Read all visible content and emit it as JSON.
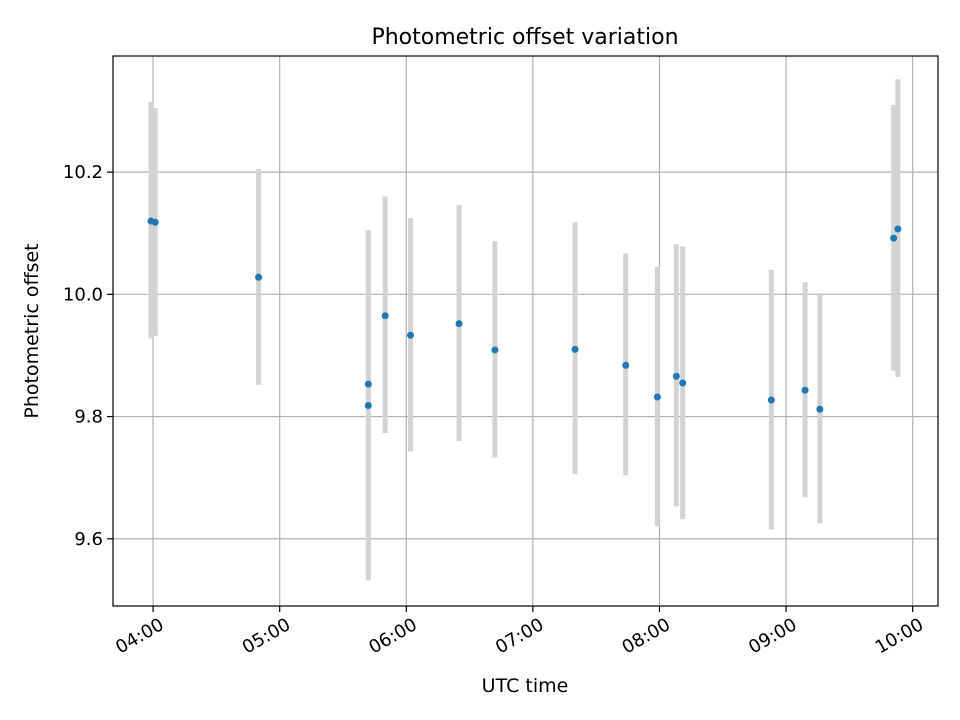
{
  "chart_data": {
    "type": "scatter",
    "title": "Photometric offset variation",
    "xlabel": "UTC time",
    "ylabel": "Photometric offset",
    "xlim": [
      "03:41",
      "10:12"
    ],
    "ylim": [
      9.49,
      10.39
    ],
    "x_ticks": [
      "04:00",
      "05:00",
      "06:00",
      "07:00",
      "08:00",
      "09:00",
      "10:00"
    ],
    "y_ticks": [
      9.6,
      9.8,
      10.0,
      10.2
    ],
    "grid": true,
    "colors": {
      "points": "#1f77b4",
      "error_bars": "#d3d3d3",
      "grid": "#b0b0b0"
    },
    "points": [
      {
        "x": "03:59",
        "y": 10.12,
        "yerr_low": 9.928,
        "yerr_high": 10.315
      },
      {
        "x": "04:01",
        "y": 10.118,
        "yerr_low": 9.932,
        "yerr_high": 10.305
      },
      {
        "x": "04:50",
        "y": 10.028,
        "yerr_low": 9.852,
        "yerr_high": 10.205
      },
      {
        "x": "05:42",
        "y": 9.853,
        "yerr_low": 9.545,
        "yerr_high": 10.105
      },
      {
        "x": "05:42",
        "y": 9.818,
        "yerr_low": 9.532,
        "yerr_high": 10.103
      },
      {
        "x": "05:50",
        "y": 9.965,
        "yerr_low": 9.773,
        "yerr_high": 10.16
      },
      {
        "x": "06:02",
        "y": 9.933,
        "yerr_low": 9.743,
        "yerr_high": 10.125
      },
      {
        "x": "06:25",
        "y": 9.952,
        "yerr_low": 9.76,
        "yerr_high": 10.146
      },
      {
        "x": "06:42",
        "y": 9.909,
        "yerr_low": 9.733,
        "yerr_high": 10.087
      },
      {
        "x": "07:20",
        "y": 9.91,
        "yerr_low": 9.706,
        "yerr_high": 10.118
      },
      {
        "x": "07:44",
        "y": 9.884,
        "yerr_low": 9.704,
        "yerr_high": 10.067
      },
      {
        "x": "07:59",
        "y": 9.832,
        "yerr_low": 9.62,
        "yerr_high": 10.045
      },
      {
        "x": "08:08",
        "y": 9.866,
        "yerr_low": 9.653,
        "yerr_high": 10.082
      },
      {
        "x": "08:11",
        "y": 9.855,
        "yerr_low": 9.632,
        "yerr_high": 10.078
      },
      {
        "x": "08:53",
        "y": 9.827,
        "yerr_low": 9.615,
        "yerr_high": 10.04
      },
      {
        "x": "09:09",
        "y": 9.843,
        "yerr_low": 9.668,
        "yerr_high": 10.02
      },
      {
        "x": "09:16",
        "y": 9.812,
        "yerr_low": 9.625,
        "yerr_high": 10.002
      },
      {
        "x": "09:51",
        "y": 10.092,
        "yerr_low": 9.875,
        "yerr_high": 10.31
      },
      {
        "x": "09:53",
        "y": 10.107,
        "yerr_low": 9.865,
        "yerr_high": 10.352
      }
    ]
  }
}
